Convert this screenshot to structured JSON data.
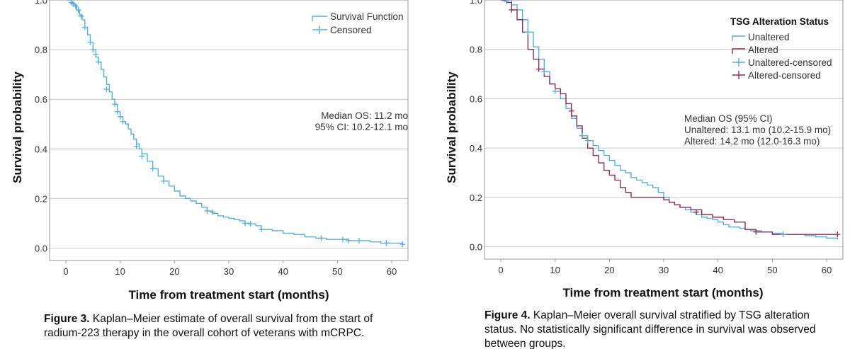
{
  "chart_data": [
    {
      "type": "line",
      "subtype": "kaplan-meier",
      "xlabel": "Time from treatment start (months)",
      "ylabel": "Survival probability",
      "xlim": [
        -3,
        63
      ],
      "ylim": [
        -0.05,
        1.0
      ],
      "xticks": [
        "0",
        "10",
        "20",
        "30",
        "40",
        "50",
        "60"
      ],
      "yticks": [
        "0.0",
        "0.2",
        "0.4",
        "0.6",
        "0.8",
        "1.0"
      ],
      "grid": "horizontal",
      "legend_position": "top-right",
      "legend": [
        "Survival Function",
        "Censored"
      ],
      "colors": {
        "survival": "#5aade0"
      },
      "annotation": [
        "Median OS: 11.2 mo",
        "95% CI: 10.2-12.1 mo"
      ],
      "series": [
        {
          "name": "Survival Function",
          "x": [
            0,
            0.5,
            1,
            1.5,
            2,
            2.5,
            3,
            3.5,
            4,
            4.5,
            5,
            5.5,
            6,
            6.5,
            7,
            7.5,
            8,
            8.5,
            9,
            9.5,
            10,
            10.5,
            11,
            11.5,
            12,
            12.5,
            13,
            13.5,
            14,
            15,
            16,
            17,
            18,
            19,
            20,
            21,
            22,
            23,
            24,
            25,
            26,
            27,
            28,
            29,
            30,
            31,
            32,
            33,
            34,
            35,
            36,
            38,
            40,
            42,
            44,
            46,
            48,
            50,
            52,
            54,
            56,
            58,
            60,
            62
          ],
          "y": [
            1.0,
            1.0,
            0.99,
            0.98,
            0.96,
            0.94,
            0.92,
            0.89,
            0.86,
            0.83,
            0.8,
            0.77,
            0.75,
            0.72,
            0.69,
            0.66,
            0.63,
            0.6,
            0.58,
            0.55,
            0.53,
            0.51,
            0.5,
            0.48,
            0.46,
            0.44,
            0.42,
            0.4,
            0.38,
            0.35,
            0.32,
            0.29,
            0.27,
            0.25,
            0.23,
            0.21,
            0.2,
            0.19,
            0.18,
            0.165,
            0.15,
            0.14,
            0.13,
            0.125,
            0.12,
            0.115,
            0.11,
            0.1,
            0.098,
            0.09,
            0.075,
            0.07,
            0.06,
            0.055,
            0.045,
            0.04,
            0.035,
            0.035,
            0.03,
            0.03,
            0.025,
            0.02,
            0.02,
            0.015
          ]
        },
        {
          "name": "Censored",
          "x": [
            1,
            1.3,
            1.8,
            2.3,
            2.8,
            3.5,
            4.5,
            5,
            5.5,
            6,
            7.5,
            9,
            9.5,
            10,
            10.5,
            13,
            14,
            16,
            18,
            26,
            27,
            33,
            34,
            36,
            47,
            51,
            52,
            54,
            59,
            62
          ],
          "y": [
            0.99,
            0.985,
            0.975,
            0.96,
            0.935,
            0.89,
            0.83,
            0.8,
            0.78,
            0.75,
            0.64,
            0.58,
            0.55,
            0.53,
            0.51,
            0.41,
            0.37,
            0.32,
            0.27,
            0.15,
            0.145,
            0.1,
            0.098,
            0.075,
            0.04,
            0.035,
            0.03,
            0.03,
            0.02,
            0.015
          ]
        }
      ]
    },
    {
      "type": "line",
      "subtype": "kaplan-meier",
      "xlabel": "Time from treatment start (months)",
      "ylabel": "Survival probability",
      "xlim": [
        -3,
        63
      ],
      "ylim": [
        -0.05,
        1.0
      ],
      "xticks": [
        "0",
        "10",
        "20",
        "30",
        "40",
        "50",
        "60"
      ],
      "yticks": [
        "0.0",
        "0.2",
        "0.4",
        "0.6",
        "0.8",
        "1.0"
      ],
      "grid": "horizontal",
      "legend_position": "top-right",
      "legend_title": "TSG Alteration Status",
      "legend": [
        "Unaltered",
        "Altered",
        "Unaltered-censored",
        "Altered-censored"
      ],
      "colors": {
        "unaltered": "#5aade0",
        "altered": "#8b2e55"
      },
      "annotation": [
        "Median OS (95% CI)",
        "Unaltered: 13.1 mo (10.2-15.9 mo)",
        "Altered: 14.2 mo (12.0-16.3 mo)"
      ],
      "series": [
        {
          "name": "Unaltered",
          "x": [
            0,
            1,
            2,
            3,
            4,
            5,
            6,
            7,
            8,
            9,
            10,
            11,
            12,
            13,
            14,
            15,
            16,
            17,
            18,
            19,
            20,
            21,
            22,
            23,
            24,
            25,
            26,
            27,
            28,
            29,
            30,
            31,
            32,
            33,
            34,
            35,
            36,
            37,
            38,
            39,
            40,
            41,
            42,
            44,
            45,
            46,
            48,
            50,
            52,
            54,
            56,
            58,
            60,
            62
          ],
          "y": [
            1.0,
            1.0,
            0.98,
            0.96,
            0.92,
            0.87,
            0.81,
            0.76,
            0.71,
            0.66,
            0.63,
            0.6,
            0.56,
            0.52,
            0.48,
            0.45,
            0.43,
            0.41,
            0.39,
            0.37,
            0.35,
            0.33,
            0.31,
            0.3,
            0.28,
            0.27,
            0.26,
            0.25,
            0.24,
            0.22,
            0.2,
            0.18,
            0.17,
            0.16,
            0.15,
            0.14,
            0.13,
            0.12,
            0.115,
            0.11,
            0.1,
            0.09,
            0.08,
            0.075,
            0.07,
            0.065,
            0.06,
            0.055,
            0.05,
            0.05,
            0.045,
            0.04,
            0.035,
            0.03
          ]
        },
        {
          "name": "Altered",
          "x": [
            0,
            1,
            2,
            3,
            4,
            5,
            6,
            7,
            8,
            9,
            10,
            11,
            12,
            13,
            14,
            15,
            16,
            17,
            18,
            19,
            20,
            21,
            22,
            23,
            24,
            26,
            28,
            30,
            31,
            32,
            33,
            35,
            37,
            39,
            41,
            43,
            45,
            47,
            50,
            55,
            60,
            62
          ],
          "y": [
            1.0,
            0.99,
            0.96,
            0.92,
            0.87,
            0.8,
            0.76,
            0.72,
            0.69,
            0.66,
            0.64,
            0.62,
            0.58,
            0.53,
            0.49,
            0.44,
            0.4,
            0.37,
            0.34,
            0.31,
            0.29,
            0.27,
            0.24,
            0.22,
            0.2,
            0.2,
            0.2,
            0.19,
            0.18,
            0.17,
            0.16,
            0.15,
            0.13,
            0.12,
            0.11,
            0.1,
            0.07,
            0.06,
            0.05,
            0.05,
            0.05,
            0.05
          ]
        },
        {
          "name": "Unaltered-censored",
          "x": [
            1,
            5,
            8,
            10,
            15,
            16,
            52
          ],
          "y": [
            0.995,
            0.87,
            0.71,
            0.63,
            0.45,
            0.43,
            0.05
          ]
        },
        {
          "name": "Altered-censored",
          "x": [
            2,
            7,
            13,
            36,
            47,
            62
          ],
          "y": [
            0.96,
            0.72,
            0.55,
            0.14,
            0.06,
            0.05
          ]
        }
      ]
    }
  ],
  "captions": [
    {
      "label": "Figure 3.",
      "lines": [
        "Kaplan–Meier estimate of overall survival from the start of",
        "radium-223 therapy in the overall cohort of veterans with mCRPC."
      ]
    },
    {
      "label": "Figure 4.",
      "lines": [
        "Kaplan–Meier overall survival stratified by TSG alteration",
        "status. No statistically significant difference in survival was observed",
        "between groups."
      ]
    }
  ]
}
